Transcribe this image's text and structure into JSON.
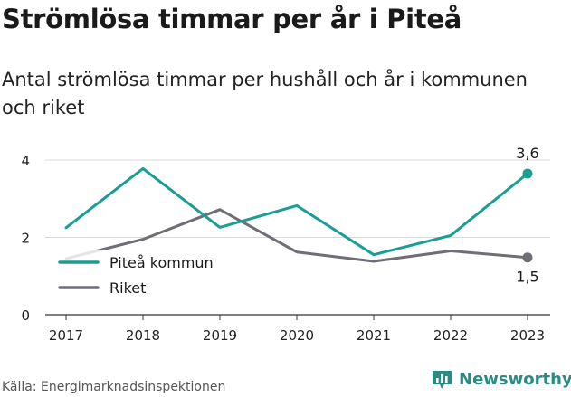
{
  "header": {
    "title": "Strömlösa timmar per år i Piteå",
    "subtitle": "Antal strömlösa timmar per hushåll och år i kommunen och riket"
  },
  "footer": {
    "source": "Källa: Energimarknadsinspektionen",
    "brand": "Newsworthy"
  },
  "icons": {
    "logo": "newsworthy-logo-icon"
  },
  "colors": {
    "pitea": "#1a9e93",
    "riket": "#6f6e76",
    "grid": "#d9d9d9",
    "axis": "#333333",
    "brand": "#2a8a84"
  },
  "chart_data": {
    "type": "line",
    "x": [
      "2017",
      "2018",
      "2019",
      "2020",
      "2021",
      "2022",
      "2023"
    ],
    "ylim": [
      0,
      4.3
    ],
    "yticks": [
      0,
      2,
      4
    ],
    "grid": true,
    "legend_position": "left, inside plot",
    "series": [
      {
        "name": "Piteå kommun",
        "color": "#1a9e93",
        "values": [
          2.25,
          3.78,
          2.26,
          2.82,
          1.55,
          2.05,
          3.65
        ],
        "end_label": "3,6"
      },
      {
        "name": "Riket",
        "color": "#6f6e76",
        "values": [
          1.45,
          1.95,
          2.72,
          1.62,
          1.38,
          1.65,
          1.48
        ],
        "end_label": "1,5"
      }
    ]
  }
}
